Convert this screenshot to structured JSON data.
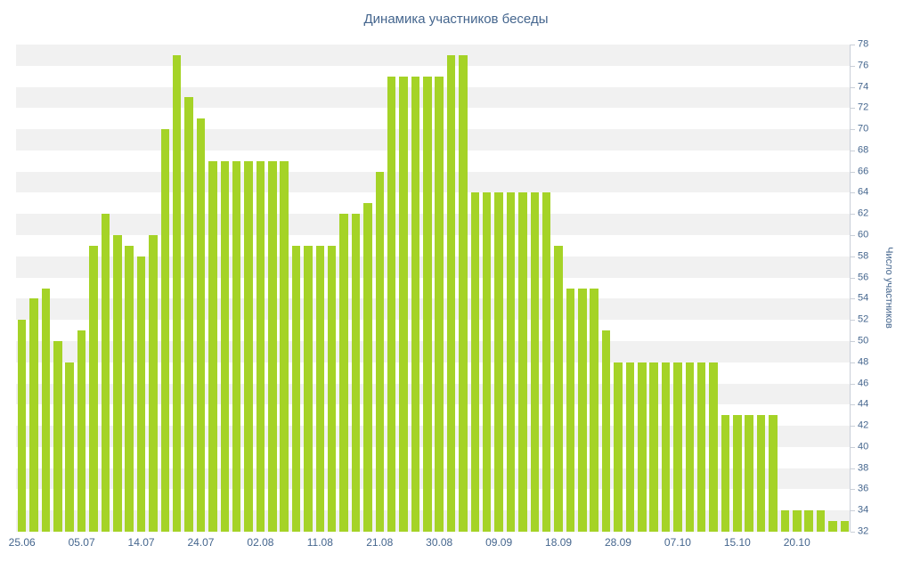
{
  "chart_data": {
    "type": "bar",
    "title": "Динамика участников беседы",
    "ylabel": "Число участников",
    "xlabel": "",
    "ylim": [
      32,
      78
    ],
    "y_tick_step": 2,
    "y_ticks": [
      32,
      34,
      36,
      38,
      40,
      42,
      44,
      46,
      48,
      50,
      52,
      54,
      56,
      58,
      60,
      62,
      64,
      66,
      68,
      70,
      72,
      74,
      76,
      78
    ],
    "x_tick_labels": [
      "25.06",
      "05.07",
      "14.07",
      "24.07",
      "02.08",
      "11.08",
      "21.08",
      "30.08",
      "09.09",
      "18.09",
      "28.09",
      "07.10",
      "15.10",
      "20.10"
    ],
    "x_tick_every": 5,
    "values": [
      52,
      54,
      55,
      50,
      48,
      51,
      59,
      62,
      60,
      59,
      58,
      60,
      70,
      77,
      73,
      71,
      67,
      67,
      67,
      67,
      67,
      67,
      67,
      59,
      59,
      59,
      59,
      62,
      62,
      63,
      66,
      75,
      75,
      75,
      75,
      75,
      77,
      77,
      64,
      64,
      64,
      64,
      64,
      64,
      64,
      59,
      55,
      55,
      55,
      51,
      48,
      48,
      48,
      48,
      48,
      48,
      48,
      48,
      48,
      43,
      43,
      43,
      43,
      43,
      34,
      34,
      34,
      34,
      33,
      33
    ],
    "legend": "off",
    "grid": "alternating-horizontal-bands",
    "legend_position": "none",
    "colors": {
      "bar": "#a5d327",
      "text": "#45668e",
      "stripe": "#f1f1f1",
      "axis": "#c9cfd8",
      "background": "#ffffff"
    }
  }
}
